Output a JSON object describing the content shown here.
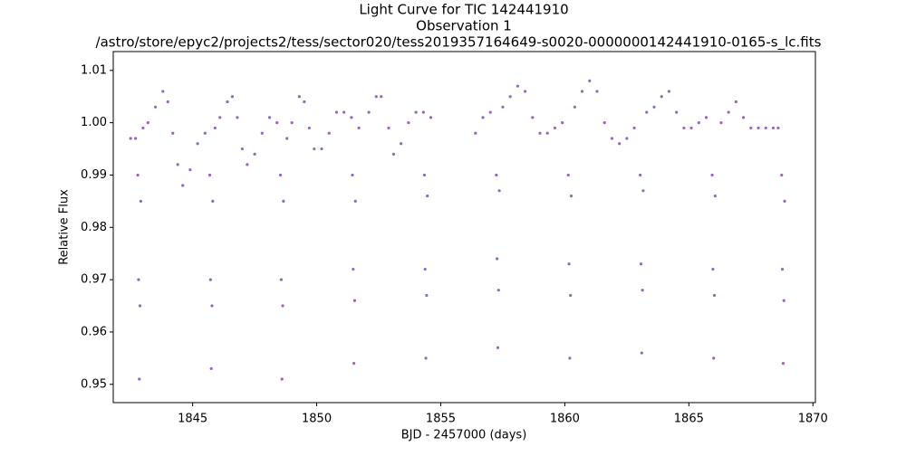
{
  "chart_data": {
    "type": "scatter",
    "title_lines": [
      "Light Curve for TIC 142441910",
      "Observation 1",
      "/astro/store/epyc2/projects2/tess/sector020/tess2019357164649-s0020-0000000142441910-0165-s_lc.fits"
    ],
    "xlabel": "BJD - 2457000 (days)",
    "ylabel": "Relative Flux",
    "color": "#9467bd",
    "xlim": [
      1841.8,
      1870.1
    ],
    "ylim": [
      0.9465,
      1.0136
    ],
    "xticks": [
      1845,
      1850,
      1855,
      1860,
      1865,
      1870
    ],
    "yticks": [
      0.95,
      0.96,
      0.97,
      0.98,
      0.99,
      {
        "value": 1,
        "label": "1.00"
      },
      1.01
    ],
    "x": [
      1842.5,
      1842.7,
      1843.0,
      1843.2,
      1843.5,
      1843.8,
      1844.0,
      1844.2,
      1844.4,
      1844.6,
      1844.9,
      1845.2,
      1845.5,
      1845.9,
      1846.1,
      1846.4,
      1846.6,
      1846.8,
      1847.0,
      1847.2,
      1847.5,
      1847.8,
      1848.1,
      1848.4,
      1848.8,
      1849.0,
      1849.3,
      1849.5,
      1849.7,
      1849.9,
      1850.2,
      1850.5,
      1850.8,
      1851.1,
      1851.4,
      1851.7,
      1852.1,
      1852.4,
      1852.6,
      1852.9,
      1853.1,
      1853.4,
      1853.7,
      1854.0,
      1854.3,
      1854.6,
      1856.4,
      1856.7,
      1857.0,
      1857.5,
      1857.8,
      1858.1,
      1858.4,
      1858.7,
      1859.0,
      1859.3,
      1859.6,
      1859.9,
      1860.4,
      1860.7,
      1861.0,
      1861.3,
      1861.6,
      1861.9,
      1862.2,
      1862.5,
      1862.8,
      1863.3,
      1863.6,
      1863.9,
      1864.2,
      1864.5,
      1864.8,
      1865.1,
      1865.4,
      1865.7,
      1866.3,
      1866.6,
      1866.9,
      1867.2,
      1867.5,
      1867.8,
      1868.1,
      1868.4,
      1868.6,
      1842.79,
      1842.82,
      1842.85,
      1842.88,
      1842.91,
      1845.69,
      1845.72,
      1845.75,
      1845.78,
      1845.81,
      1848.54,
      1848.57,
      1848.6,
      1848.63,
      1848.66,
      1851.44,
      1851.47,
      1851.5,
      1851.53,
      1851.56,
      1854.34,
      1854.37,
      1854.4,
      1854.43,
      1854.46,
      1857.24,
      1857.27,
      1857.3,
      1857.33,
      1857.36,
      1860.14,
      1860.17,
      1860.2,
      1860.23,
      1860.26,
      1863.04,
      1863.07,
      1863.1,
      1863.13,
      1863.16,
      1865.94,
      1865.97,
      1866.0,
      1866.03,
      1866.06,
      1868.74,
      1868.77,
      1868.8,
      1868.83,
      1868.86
    ],
    "values": [
      0.997,
      0.997,
      0.999,
      1.0,
      1.003,
      1.006,
      1.004,
      0.998,
      0.992,
      0.988,
      0.991,
      0.996,
      0.998,
      0.999,
      1.001,
      1.004,
      1.005,
      1.001,
      0.995,
      0.992,
      0.994,
      0.998,
      1.001,
      1.0,
      0.997,
      1.0,
      1.005,
      1.004,
      0.999,
      0.995,
      0.995,
      0.998,
      1.002,
      1.002,
      1.001,
      0.999,
      1.002,
      1.005,
      1.005,
      0.999,
      0.994,
      0.996,
      1.0,
      1.002,
      1.002,
      1.001,
      0.998,
      1.001,
      1.002,
      1.003,
      1.005,
      1.007,
      1.006,
      1.001,
      0.998,
      0.998,
      0.999,
      1.0,
      1.003,
      1.006,
      1.008,
      1.006,
      1.0,
      0.997,
      0.996,
      0.997,
      0.999,
      1.002,
      1.003,
      1.005,
      1.006,
      1.002,
      0.999,
      0.999,
      1.0,
      1.001,
      1.0,
      1.002,
      1.004,
      1.001,
      0.999,
      0.999,
      0.999,
      0.999,
      0.999,
      0.99,
      0.97,
      0.951,
      0.965,
      0.985,
      0.99,
      0.97,
      0.953,
      0.965,
      0.985,
      0.99,
      0.97,
      0.951,
      0.965,
      0.985,
      0.99,
      0.972,
      0.954,
      0.966,
      0.985,
      0.99,
      0.972,
      0.955,
      0.967,
      0.986,
      0.99,
      0.974,
      0.957,
      0.968,
      0.987,
      0.99,
      0.973,
      0.955,
      0.967,
      0.986,
      0.99,
      0.973,
      0.956,
      0.968,
      0.987,
      0.99,
      0.972,
      0.955,
      0.967,
      0.986,
      0.99,
      0.972,
      0.954,
      0.966,
      0.985
    ]
  }
}
